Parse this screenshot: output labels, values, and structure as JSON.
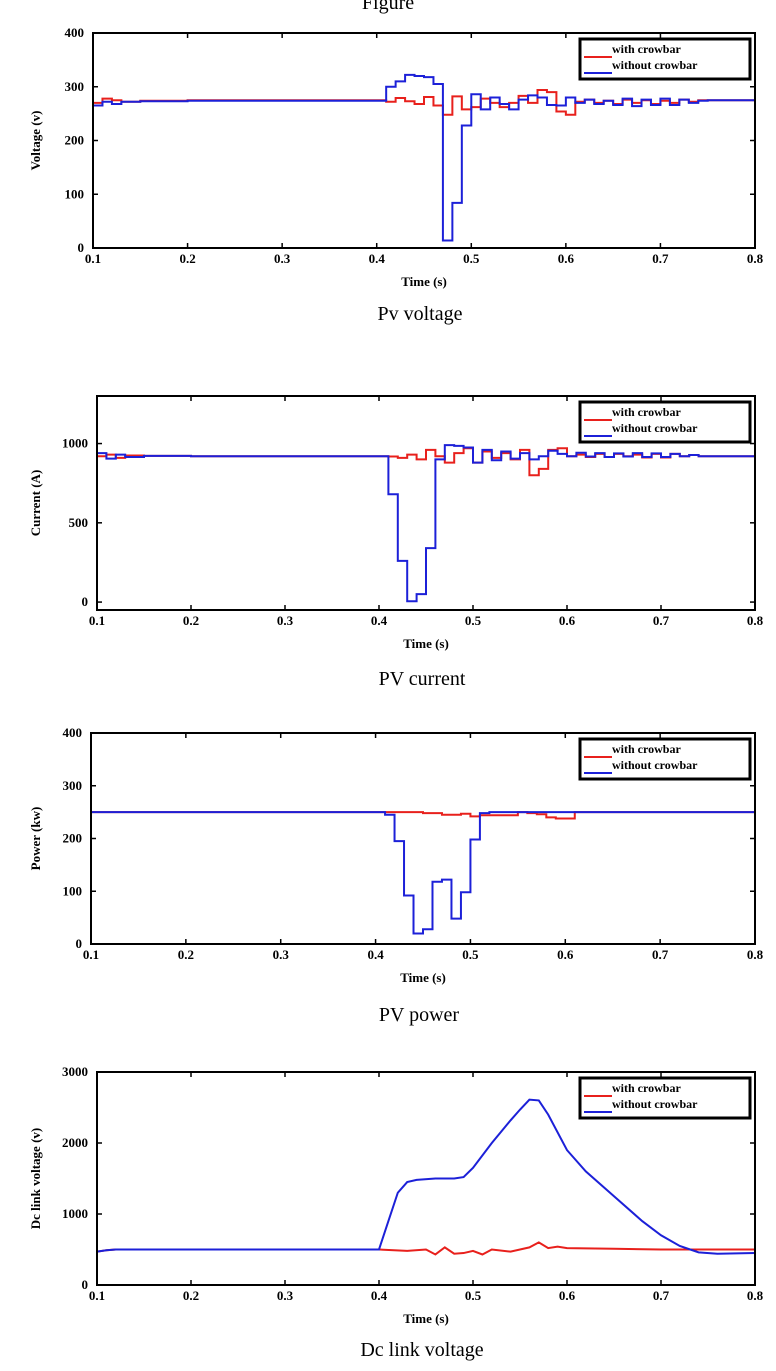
{
  "page": {
    "top_text": "Figure"
  },
  "chart_data": [
    {
      "type": "line",
      "caption": "Pv voltage",
      "xlabel": "Time (s)",
      "ylabel": "Voltage (v)",
      "xlim": [
        0.1,
        0.8
      ],
      "ylim": [
        0,
        400
      ],
      "xticks": [
        0.1,
        0.2,
        0.3,
        0.4,
        0.5,
        0.6,
        0.7,
        0.8
      ],
      "xtick_labels": [
        "0.1",
        "0.2",
        "0.3",
        "0.4",
        "0.5",
        "0.6",
        "0.7",
        "0.8"
      ],
      "yticks": [
        0,
        100,
        200,
        300,
        400
      ],
      "ytick_labels": [
        "0",
        "100",
        "200",
        "300",
        "400"
      ],
      "legend": "top-right",
      "grid": false,
      "series": [
        {
          "name": "with crowbar",
          "color": "#e8201c",
          "step": true,
          "x": [
            0.1,
            0.11,
            0.12,
            0.13,
            0.15,
            0.2,
            0.3,
            0.4,
            0.41,
            0.42,
            0.43,
            0.44,
            0.45,
            0.46,
            0.47,
            0.48,
            0.49,
            0.5,
            0.51,
            0.52,
            0.53,
            0.54,
            0.55,
            0.56,
            0.57,
            0.58,
            0.59,
            0.6,
            0.61,
            0.62,
            0.63,
            0.64,
            0.65,
            0.66,
            0.67,
            0.68,
            0.69,
            0.7,
            0.71,
            0.72,
            0.73,
            0.74,
            0.75,
            0.8
          ],
          "y": [
            270,
            278,
            275,
            272,
            274,
            275,
            275,
            275,
            272,
            279,
            273,
            268,
            281,
            265,
            248,
            282,
            258,
            262,
            278,
            270,
            262,
            270,
            283,
            270,
            294,
            290,
            254,
            248,
            272,
            276,
            270,
            274,
            268,
            276,
            270,
            275,
            268,
            274,
            270,
            276,
            272,
            275,
            275,
            275
          ]
        },
        {
          "name": "without crowbar",
          "color": "#1c20d8",
          "step": true,
          "x": [
            0.1,
            0.11,
            0.12,
            0.13,
            0.15,
            0.2,
            0.3,
            0.4,
            0.41,
            0.42,
            0.43,
            0.44,
            0.45,
            0.46,
            0.47,
            0.48,
            0.49,
            0.5,
            0.51,
            0.52,
            0.53,
            0.54,
            0.55,
            0.56,
            0.57,
            0.58,
            0.59,
            0.6,
            0.61,
            0.62,
            0.63,
            0.64,
            0.65,
            0.66,
            0.67,
            0.68,
            0.69,
            0.7,
            0.71,
            0.72,
            0.73,
            0.74,
            0.75,
            0.8
          ],
          "y": [
            265,
            272,
            268,
            272,
            273,
            274,
            274,
            274,
            300,
            310,
            322,
            320,
            318,
            305,
            14,
            84,
            228,
            286,
            258,
            280,
            268,
            258,
            276,
            284,
            280,
            266,
            265,
            280,
            270,
            276,
            268,
            274,
            266,
            278,
            264,
            276,
            266,
            278,
            266,
            276,
            270,
            274,
            275,
            275
          ]
        }
      ]
    },
    {
      "type": "line",
      "caption": "PV current",
      "xlabel": "Time (s)",
      "ylabel": "Current (A)",
      "xlim": [
        0.1,
        0.8
      ],
      "ylim": [
        -50,
        1300
      ],
      "xticks": [
        0.1,
        0.2,
        0.3,
        0.4,
        0.5,
        0.6,
        0.7,
        0.8
      ],
      "xtick_labels": [
        "0.1",
        "0.2",
        "0.3",
        "0.4",
        "0.5",
        "0.6",
        "0.7",
        "0.8"
      ],
      "yticks": [
        0,
        500,
        1000
      ],
      "ytick_labels": [
        "0",
        "500",
        "1000"
      ],
      "legend": "top-right",
      "grid": false,
      "series": [
        {
          "name": "with crowbar",
          "color": "#e8201c",
          "step": true,
          "x": [
            0.1,
            0.11,
            0.12,
            0.13,
            0.15,
            0.2,
            0.3,
            0.4,
            0.41,
            0.42,
            0.43,
            0.44,
            0.45,
            0.46,
            0.47,
            0.48,
            0.49,
            0.5,
            0.51,
            0.52,
            0.53,
            0.54,
            0.55,
            0.56,
            0.57,
            0.58,
            0.59,
            0.6,
            0.61,
            0.62,
            0.63,
            0.64,
            0.65,
            0.66,
            0.67,
            0.68,
            0.69,
            0.7,
            0.71,
            0.72,
            0.73,
            0.74,
            0.75,
            0.8
          ],
          "y": [
            920,
            930,
            910,
            925,
            922,
            920,
            920,
            920,
            918,
            910,
            930,
            900,
            960,
            920,
            880,
            940,
            970,
            880,
            950,
            910,
            940,
            900,
            960,
            800,
            840,
            960,
            970,
            920,
            930,
            915,
            935,
            915,
            935,
            920,
            930,
            912,
            935,
            912,
            935,
            920,
            928,
            920,
            920,
            920
          ]
        },
        {
          "name": "without crowbar",
          "color": "#1c20d8",
          "step": true,
          "x": [
            0.1,
            0.11,
            0.12,
            0.13,
            0.15,
            0.2,
            0.3,
            0.4,
            0.41,
            0.42,
            0.43,
            0.44,
            0.45,
            0.46,
            0.47,
            0.48,
            0.49,
            0.5,
            0.51,
            0.52,
            0.53,
            0.54,
            0.55,
            0.56,
            0.57,
            0.58,
            0.59,
            0.6,
            0.61,
            0.62,
            0.63,
            0.64,
            0.65,
            0.66,
            0.67,
            0.68,
            0.69,
            0.7,
            0.71,
            0.72,
            0.73,
            0.74,
            0.75,
            0.8
          ],
          "y": [
            940,
            905,
            930,
            915,
            922,
            920,
            920,
            920,
            680,
            260,
            5,
            50,
            340,
            900,
            990,
            985,
            975,
            880,
            960,
            895,
            950,
            905,
            940,
            900,
            920,
            955,
            935,
            920,
            942,
            918,
            940,
            915,
            938,
            918,
            940,
            915,
            938,
            915,
            935,
            920,
            928,
            920,
            920,
            920
          ]
        }
      ]
    },
    {
      "type": "line",
      "caption": "PV power",
      "xlabel": "Time (s)",
      "ylabel": "Power (kw)",
      "xlim": [
        0.1,
        0.8
      ],
      "ylim": [
        0,
        400
      ],
      "xticks": [
        0.1,
        0.2,
        0.3,
        0.4,
        0.5,
        0.6,
        0.7,
        0.8
      ],
      "xtick_labels": [
        "0.1",
        "0.2",
        "0.3",
        "0.4",
        "0.5",
        "0.6",
        "0.7",
        "0.8"
      ],
      "yticks": [
        0,
        100,
        200,
        300,
        400
      ],
      "ytick_labels": [
        "0",
        "100",
        "200",
        "300",
        "400"
      ],
      "legend": "top-right",
      "grid": false,
      "series": [
        {
          "name": "with crowbar",
          "color": "#e8201c",
          "step": true,
          "x": [
            0.1,
            0.2,
            0.3,
            0.4,
            0.45,
            0.47,
            0.49,
            0.5,
            0.51,
            0.55,
            0.56,
            0.57,
            0.58,
            0.59,
            0.6,
            0.61,
            0.65,
            0.8
          ],
          "y": [
            250,
            250,
            250,
            250,
            248,
            245,
            247,
            242,
            244,
            250,
            248,
            246,
            240,
            238,
            238,
            250,
            250,
            250
          ]
        },
        {
          "name": "without crowbar",
          "color": "#1c20d8",
          "step": true,
          "x": [
            0.1,
            0.2,
            0.3,
            0.4,
            0.41,
            0.42,
            0.43,
            0.44,
            0.45,
            0.46,
            0.47,
            0.48,
            0.49,
            0.5,
            0.51,
            0.52,
            0.6,
            0.8
          ],
          "y": [
            250,
            250,
            250,
            250,
            245,
            195,
            92,
            20,
            28,
            118,
            122,
            48,
            98,
            198,
            248,
            250,
            250,
            250
          ]
        }
      ]
    },
    {
      "type": "line",
      "caption": "Dc link voltage",
      "xlabel": "Time (s)",
      "ylabel": "Dc link voltage (v)",
      "xlim": [
        0.1,
        0.8
      ],
      "ylim": [
        0,
        3000
      ],
      "xticks": [
        0.1,
        0.2,
        0.3,
        0.4,
        0.5,
        0.6,
        0.7,
        0.8
      ],
      "xtick_labels": [
        "0.1",
        "0.2",
        "0.3",
        "0.4",
        "0.5",
        "0.6",
        "0.7",
        "0.8"
      ],
      "yticks": [
        0,
        1000,
        2000,
        3000
      ],
      "ytick_labels": [
        "0",
        "1000",
        "2000",
        "3000"
      ],
      "legend": "top-right",
      "grid": false,
      "series": [
        {
          "name": "with crowbar",
          "color": "#e8201c",
          "step": false,
          "x": [
            0.1,
            0.11,
            0.12,
            0.15,
            0.2,
            0.3,
            0.4,
            0.43,
            0.45,
            0.46,
            0.47,
            0.48,
            0.49,
            0.5,
            0.51,
            0.52,
            0.54,
            0.55,
            0.56,
            0.57,
            0.58,
            0.59,
            0.6,
            0.65,
            0.7,
            0.75,
            0.8
          ],
          "y": [
            470,
            490,
            500,
            500,
            500,
            500,
            500,
            480,
            500,
            430,
            530,
            440,
            450,
            480,
            430,
            500,
            470,
            500,
            530,
            600,
            520,
            540,
            520,
            510,
            500,
            500,
            500
          ]
        },
        {
          "name": "without crowbar",
          "color": "#1c20d8",
          "step": false,
          "x": [
            0.1,
            0.11,
            0.12,
            0.2,
            0.3,
            0.4,
            0.41,
            0.42,
            0.43,
            0.44,
            0.46,
            0.48,
            0.49,
            0.5,
            0.52,
            0.54,
            0.55,
            0.56,
            0.57,
            0.58,
            0.6,
            0.62,
            0.65,
            0.68,
            0.7,
            0.72,
            0.74,
            0.76,
            0.8
          ],
          "y": [
            470,
            490,
            500,
            500,
            500,
            500,
            900,
            1300,
            1450,
            1480,
            1500,
            1500,
            1520,
            1650,
            2000,
            2320,
            2470,
            2610,
            2600,
            2400,
            1900,
            1600,
            1250,
            900,
            700,
            550,
            460,
            440,
            450
          ]
        }
      ]
    }
  ]
}
